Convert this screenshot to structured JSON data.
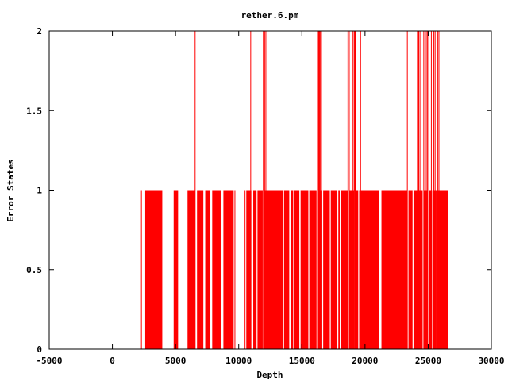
{
  "chart_data": {
    "type": "bar",
    "title": "rether.6.pm",
    "xlabel": "Depth",
    "ylabel": "Error States",
    "xlim": [
      -5000,
      30000
    ],
    "ylim": [
      0,
      2
    ],
    "x_ticks": [
      -5000,
      0,
      5000,
      10000,
      15000,
      20000,
      25000,
      30000
    ],
    "x_tick_labels": [
      "-5000",
      "0",
      "5000",
      "10000",
      "15000",
      "20000",
      "25000",
      "30000"
    ],
    "y_ticks": [
      0,
      0.5,
      1,
      1.5,
      2
    ],
    "y_tick_labels": [
      "0",
      "0.5",
      "1",
      "1.5",
      "2"
    ],
    "grid": false,
    "legend": "none",
    "bar_color": "#ff0000",
    "series": [
      {
        "filled_ranges_value_1": [
          [
            2600,
            3950
          ],
          [
            4850,
            5200
          ],
          [
            5950,
            6550
          ],
          [
            6700,
            7200
          ],
          [
            7350,
            7750
          ],
          [
            7900,
            8600
          ],
          [
            8750,
            9600
          ],
          [
            10600,
            11000
          ],
          [
            11150,
            11900
          ],
          [
            12000,
            14000
          ],
          [
            14100,
            14800
          ],
          [
            14900,
            16200
          ],
          [
            16300,
            18000
          ],
          [
            18100,
            21100
          ],
          [
            21300,
            26550
          ]
        ],
        "thin_bars_value_1": [
          2300,
          6100,
          9700,
          10500
        ],
        "spikes_value_2": [
          6550,
          10950,
          11950,
          12050,
          12150,
          16300,
          16350,
          16400,
          16450,
          16550,
          18650,
          18750,
          19050,
          19150,
          19200,
          19250,
          19650,
          23350,
          24150,
          24250,
          24350,
          24650,
          24750,
          24850,
          24950,
          25050,
          25250,
          25450,
          25550,
          25750,
          25850
        ],
        "gaps_within_filled": [
          7850,
          8750,
          11450,
          13550,
          14050,
          14350,
          15550,
          16200,
          16650,
          17250,
          17850,
          18700,
          19200,
          19500,
          21200,
          23400,
          23800,
          24200,
          24600,
          25000,
          25350,
          25700
        ]
      }
    ]
  }
}
